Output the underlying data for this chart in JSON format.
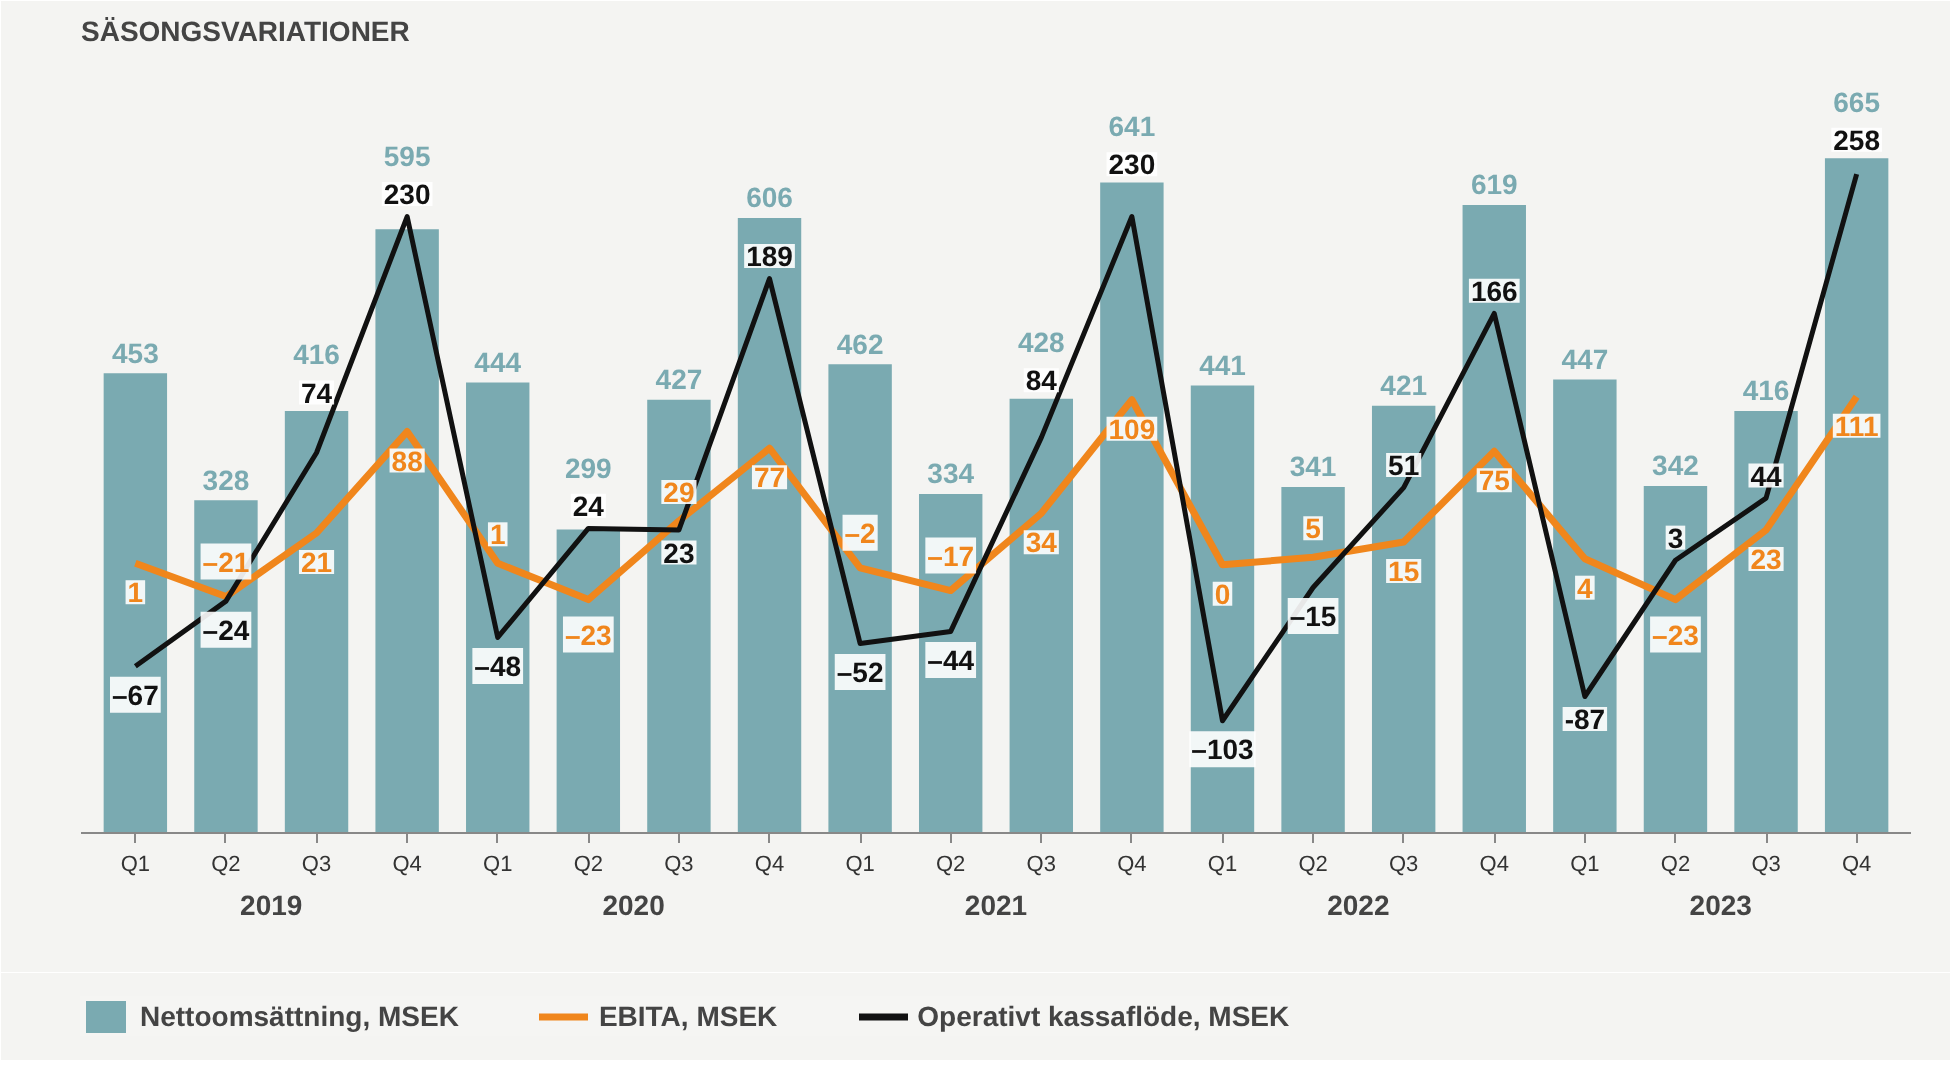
{
  "chart_data": {
    "type": "bar",
    "title": "SÄSONGSVARIATIONER",
    "categories": [
      "Q1",
      "Q2",
      "Q3",
      "Q4",
      "Q1",
      "Q2",
      "Q3",
      "Q4",
      "Q1",
      "Q2",
      "Q3",
      "Q4",
      "Q1",
      "Q2",
      "Q3",
      "Q4",
      "Q1",
      "Q2",
      "Q3",
      "Q4"
    ],
    "annotations": [
      "2019",
      "2020",
      "2021",
      "2022",
      "2023"
    ],
    "series": [
      {
        "name": "Nettoomsättning, MSEK",
        "color": "#7aaab1",
        "values": [
          453,
          328,
          416,
          595,
          444,
          299,
          427,
          606,
          462,
          334,
          428,
          641,
          441,
          341,
          421,
          619,
          447,
          342,
          416,
          665
        ]
      },
      {
        "name": "EBITA, MSEK",
        "type": "line",
        "axis": "y2",
        "color": "#f0861c",
        "values": [
          1,
          -21,
          21,
          88,
          1,
          -23,
          29,
          77,
          -2,
          -17,
          34,
          109,
          0,
          5,
          15,
          75,
          4,
          -23,
          23,
          111
        ],
        "value_labels": [
          "1",
          "–21",
          "21",
          "88",
          "1",
          "–23",
          "29",
          "77",
          "–2",
          "–17",
          "34",
          "109",
          "0",
          "5",
          "15",
          "75",
          "4",
          "–23",
          "23",
          "111"
        ]
      },
      {
        "name": "Operativt kassaflöde, MSEK",
        "type": "line",
        "axis": "y2",
        "color": "#111111",
        "values": [
          -67,
          -24,
          74,
          230,
          -48,
          24,
          23,
          189,
          -52,
          -44,
          84,
          230,
          -103,
          -15,
          51,
          166,
          -87,
          3,
          44,
          258
        ],
        "value_labels": [
          "–67",
          "–24",
          "74",
          "230",
          "–48",
          "24",
          "23",
          "189",
          "–52",
          "–44",
          "84",
          "230",
          "–103",
          "–15",
          "51",
          "166",
          "-87",
          "3",
          "44",
          "258"
        ]
      }
    ],
    "tick_labels": "x",
    "data_labels": true,
    "grid": false,
    "legend": "bottom",
    "marker": "none",
    "line_style": "solid"
  }
}
